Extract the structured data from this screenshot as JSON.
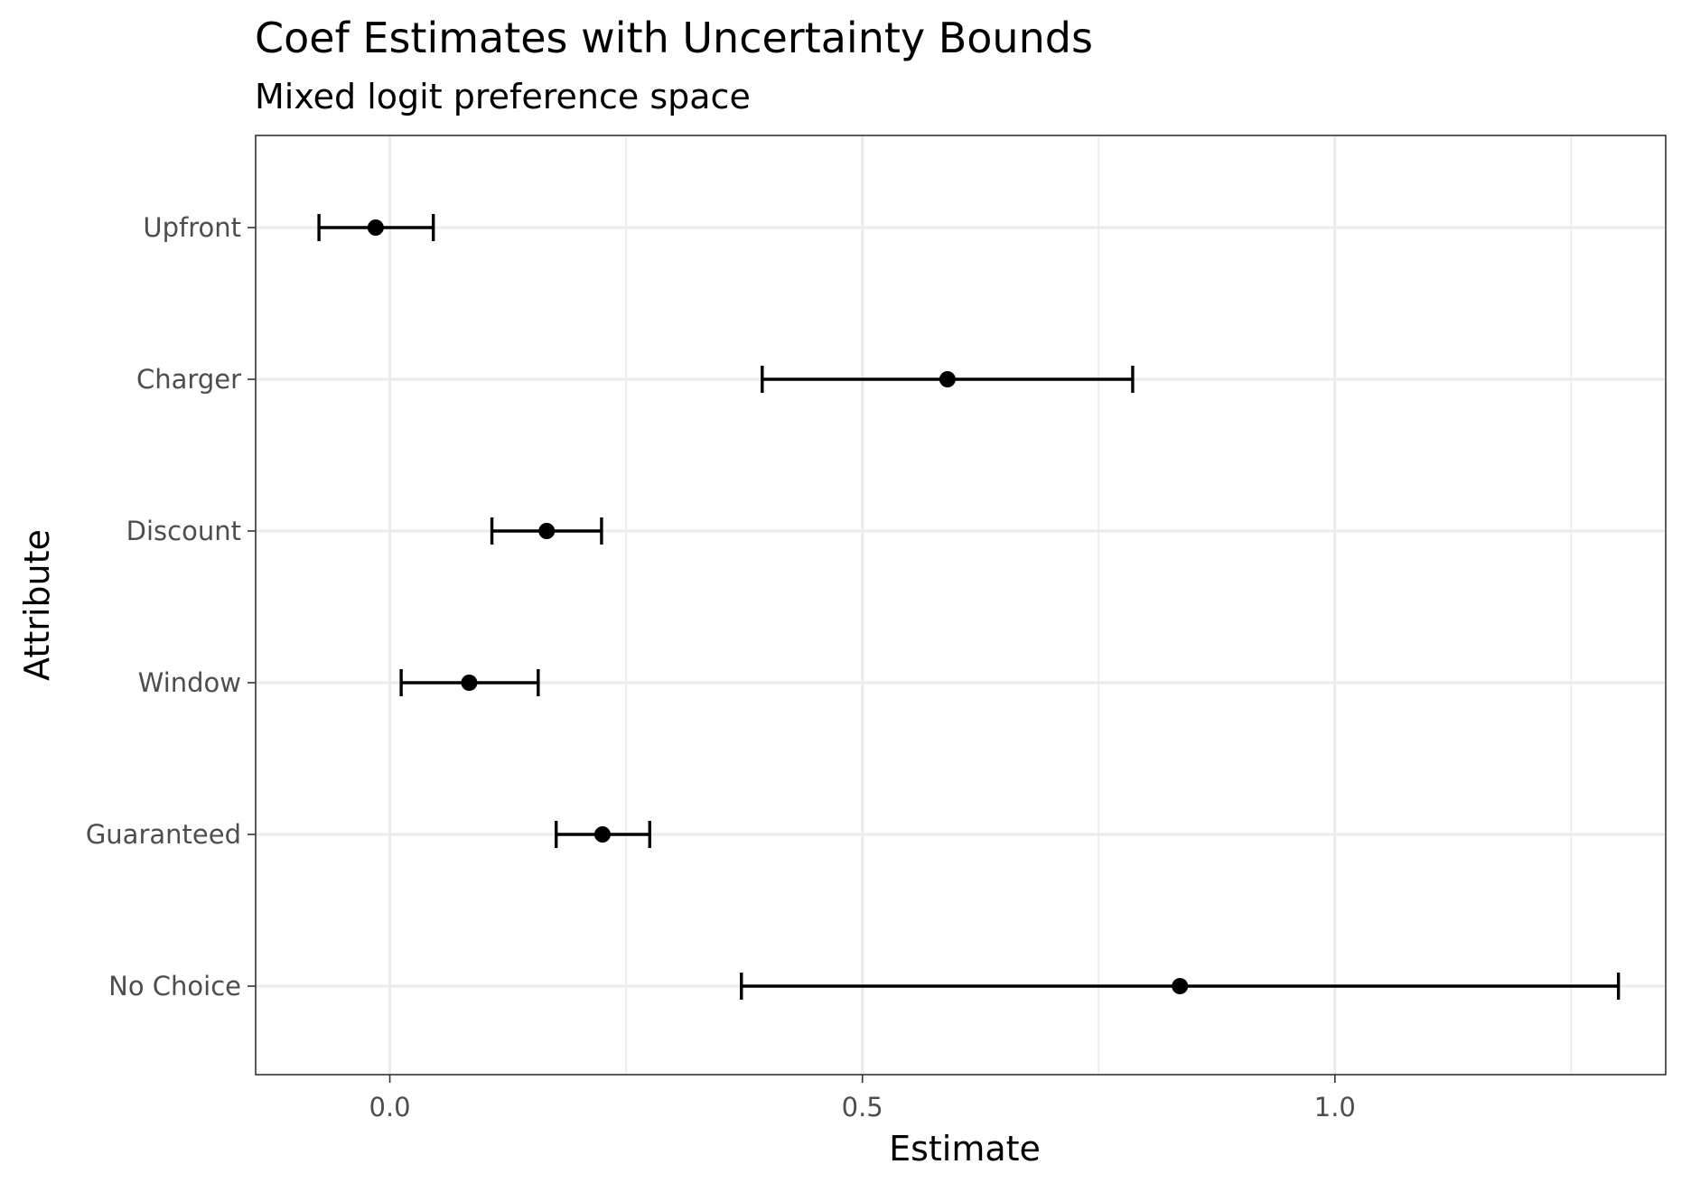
{
  "chart_data": {
    "type": "errorbar",
    "orientation": "horizontal",
    "title": "Coef Estimates with Uncertainty Bounds",
    "subtitle": "Mixed logit preference space",
    "xlabel": "Estimate",
    "ylabel": "Attribute",
    "xlim": [
      -0.142,
      1.35
    ],
    "xticks": [
      0.0,
      0.5,
      1.0
    ],
    "xtick_labels": [
      "0.0",
      "0.5",
      "1.0"
    ],
    "categories": [
      "Upfront",
      "Charger",
      "Discount",
      "Window",
      "Guaranteed",
      "No Choice"
    ],
    "estimates": [
      -0.015,
      0.59,
      0.166,
      0.084,
      0.225,
      0.836
    ],
    "lower": [
      -0.075,
      0.394,
      0.108,
      0.012,
      0.176,
      0.372
    ],
    "upper": [
      0.046,
      0.786,
      0.224,
      0.157,
      0.275,
      1.3
    ],
    "grid": true,
    "legend": "none",
    "colors": {
      "point": "#000000",
      "grid": "#ebebeb",
      "panel_border": "#333333"
    }
  }
}
